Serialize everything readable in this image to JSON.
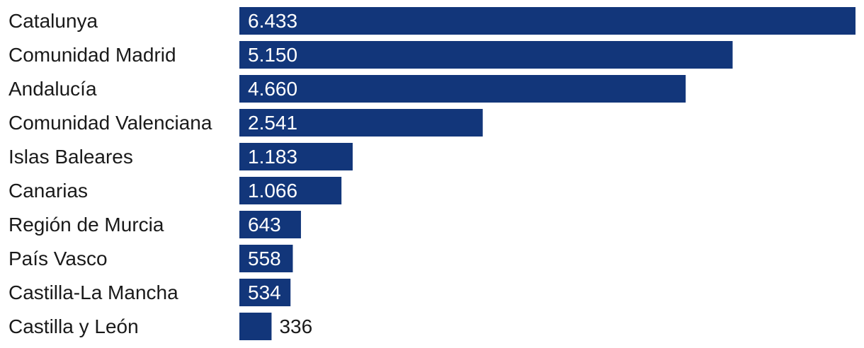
{
  "chart_data": {
    "type": "bar",
    "orientation": "horizontal",
    "title": "",
    "xlabel": "",
    "ylabel": "",
    "grid": false,
    "legend": "none",
    "bar_color": "#12367a",
    "label_inside_color": "#ffffff",
    "label_outside_color": "#1a1a1a",
    "label_color": "#1a1a1a",
    "xlim": [
      0,
      6433
    ],
    "categories": [
      "Catalunya",
      "Comunidad Madrid",
      "Andalucía",
      "Comunidad Valenciana",
      "Islas Baleares",
      "Canarias",
      "Región de Murcia",
      "País Vasco",
      "Castilla-La Mancha",
      "Castilla y León"
    ],
    "values": [
      6433,
      5150,
      4660,
      2541,
      1183,
      1066,
      643,
      558,
      534,
      336
    ],
    "value_labels": [
      "6.433",
      "5.150",
      "4.660",
      "2.541",
      "1.183",
      "1.066",
      "643",
      "558",
      "534",
      "336"
    ]
  }
}
